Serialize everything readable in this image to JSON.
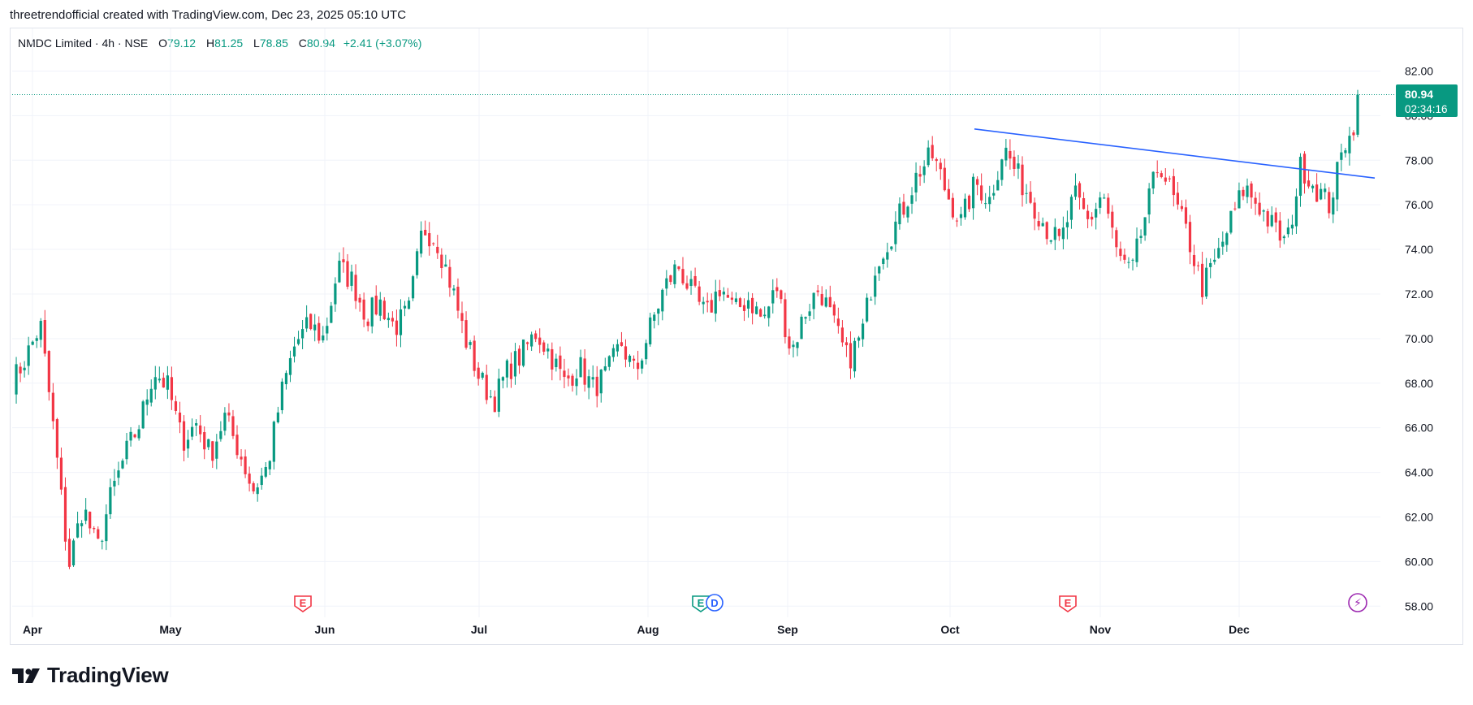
{
  "caption": "threetrendofficial created with TradingView.com, Dec 23, 2025 05:10 UTC",
  "legend": {
    "symbol": "NMDC Limited · 4h · NSE",
    "open_label": "O",
    "open": "79.12",
    "high_label": "H",
    "high": "81.25",
    "low_label": "L",
    "low": "78.85",
    "close_label": "C",
    "close": "80.94",
    "change": "+2.41 (+3.07%)"
  },
  "price_badge": {
    "price": "80.94",
    "countdown": "02:34:16"
  },
  "brand": {
    "name": "TradingView",
    "icon": "tradingview-logo-icon"
  },
  "colors": {
    "up": "#089981",
    "down": "#f23645",
    "trendline": "#2962ff",
    "earnings": "#f23645",
    "dividend": "#2962ff",
    "split": "#9c27b0"
  },
  "chart_data": {
    "type": "candlestick",
    "interval": "4h",
    "ylim": [
      57.5,
      83
    ],
    "y_ticks": [
      "58.00",
      "60.00",
      "62.00",
      "64.00",
      "66.00",
      "68.00",
      "70.00",
      "72.00",
      "74.00",
      "76.00",
      "78.00",
      "80.00",
      "82.00"
    ],
    "x_labels": [
      "Apr",
      "May",
      "Jun",
      "Jul",
      "Aug",
      "Sep",
      "Oct",
      "Nov",
      "Dec"
    ],
    "current_price": 80.94,
    "grid": true,
    "events": [
      {
        "type": "earnings",
        "label": "E",
        "month": "May"
      },
      {
        "type": "earnings",
        "label": "E",
        "month": "Aug"
      },
      {
        "type": "dividend",
        "label": "D",
        "month": "Aug"
      },
      {
        "type": "earnings",
        "label": "E",
        "month": "Oct"
      },
      {
        "type": "split",
        "label": "⚡",
        "month": "Dec"
      }
    ],
    "trendline": {
      "start": {
        "month": "Oct",
        "price": 79.4
      },
      "end": {
        "month": "Dec",
        "price": 77.2
      }
    },
    "path": [
      [
        "Apr",
        68.0
      ],
      [
        "Apr",
        69.2
      ],
      [
        "Apr",
        70.6
      ],
      [
        "Apr",
        65.5
      ],
      [
        "Apr",
        59.8
      ],
      [
        "Apr",
        62.5
      ],
      [
        "Apr",
        60.5
      ],
      [
        "Apr",
        63.0
      ],
      [
        "Apr",
        64.8
      ],
      [
        "Apr",
        66.2
      ],
      [
        "Apr",
        68.6
      ],
      [
        "Apr",
        67.8
      ],
      [
        "Apr",
        65.4
      ],
      [
        "Apr",
        66.2
      ],
      [
        "Apr",
        64.8
      ],
      [
        "Apr",
        66.5
      ],
      [
        "May",
        65.0
      ],
      [
        "May",
        63.2
      ],
      [
        "May",
        64.2
      ],
      [
        "May",
        67.5
      ],
      [
        "May",
        69.8
      ],
      [
        "May",
        70.6
      ],
      [
        "May",
        70.0
      ],
      [
        "May",
        73.2
      ],
      [
        "May",
        72.6
      ],
      [
        "May",
        71.0
      ],
      [
        "May",
        71.6
      ],
      [
        "May",
        70.5
      ],
      [
        "May",
        71.2
      ],
      [
        "Jun",
        75.0
      ],
      [
        "Jun",
        74.4
      ],
      [
        "Jun",
        72.4
      ],
      [
        "Jun",
        70.0
      ],
      [
        "Jun",
        68.2
      ],
      [
        "Jun",
        67.2
      ],
      [
        "Jun",
        68.6
      ],
      [
        "Jun",
        69.3
      ],
      [
        "Jun",
        70.3
      ],
      [
        "Jun",
        69.3
      ],
      [
        "Jul",
        68.0
      ],
      [
        "Jul",
        68.8
      ],
      [
        "Jul",
        67.8
      ],
      [
        "Jul",
        68.4
      ],
      [
        "Jul",
        69.8
      ],
      [
        "Jul",
        68.4
      ],
      [
        "Jul",
        70.4
      ],
      [
        "Jul",
        72.2
      ],
      [
        "Jul",
        73.3
      ],
      [
        "Jul",
        72.0
      ],
      [
        "Jul",
        71.0
      ],
      [
        "Aug",
        72.4
      ],
      [
        "Aug",
        71.2
      ],
      [
        "Aug",
        71.8
      ],
      [
        "Aug",
        70.8
      ],
      [
        "Aug",
        72.3
      ],
      [
        "Aug",
        69.4
      ],
      [
        "Aug",
        71.2
      ],
      [
        "Aug",
        72.3
      ],
      [
        "Aug",
        70.6
      ],
      [
        "Aug",
        69.0
      ],
      [
        "Sep",
        70.2
      ],
      [
        "Sep",
        73.5
      ],
      [
        "Sep",
        74.6
      ],
      [
        "Sep",
        76.0
      ],
      [
        "Sep",
        77.5
      ],
      [
        "Sep",
        78.2
      ],
      [
        "Sep",
        76.5
      ],
      [
        "Sep",
        75.2
      ],
      [
        "Sep",
        77.0
      ],
      [
        "Sep",
        76.2
      ],
      [
        "Oct",
        78.6
      ],
      [
        "Oct",
        77.3
      ],
      [
        "Oct",
        76.2
      ],
      [
        "Oct",
        75.0
      ],
      [
        "Oct",
        74.2
      ],
      [
        "Oct",
        76.4
      ],
      [
        "Oct",
        75.2
      ],
      [
        "Oct",
        76.6
      ],
      [
        "Oct",
        73.8
      ],
      [
        "Oct",
        72.8
      ],
      [
        "Nov",
        75.5
      ],
      [
        "Nov",
        78.0
      ],
      [
        "Nov",
        76.2
      ],
      [
        "Nov",
        74.6
      ],
      [
        "Nov",
        72.3
      ],
      [
        "Nov",
        73.5
      ],
      [
        "Nov",
        75.2
      ],
      [
        "Nov",
        76.8
      ],
      [
        "Nov",
        76.0
      ],
      [
        "Dec",
        75.0
      ],
      [
        "Dec",
        74.2
      ],
      [
        "Dec",
        77.8
      ],
      [
        "Dec",
        76.8
      ],
      [
        "Dec",
        76.0
      ],
      [
        "Dec",
        78.5
      ],
      [
        "Dec",
        81.0
      ]
    ]
  }
}
